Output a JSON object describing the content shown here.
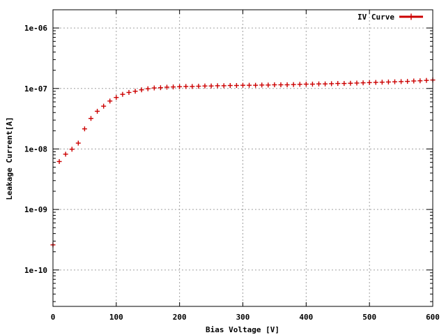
{
  "chart_data": {
    "type": "scatter",
    "xlabel": "Bias Voltage [V]",
    "ylabel": "Leakage Current[A]",
    "xlim": [
      0,
      600
    ],
    "ylim": [
      2.5e-11,
      2e-06
    ],
    "y_scale": "log",
    "grid": true,
    "legend_position": "top-right",
    "x_ticks": [
      {
        "value": 0,
        "label": "0"
      },
      {
        "value": 100,
        "label": "100"
      },
      {
        "value": 200,
        "label": "200"
      },
      {
        "value": 300,
        "label": "300"
      },
      {
        "value": 400,
        "label": "400"
      },
      {
        "value": 500,
        "label": "500"
      },
      {
        "value": 600,
        "label": "600"
      }
    ],
    "y_ticks": [
      {
        "value": 1e-10,
        "label": "1e-10"
      },
      {
        "value": 1e-09,
        "label": "1e-09"
      },
      {
        "value": 1e-08,
        "label": "1e-08"
      },
      {
        "value": 1e-07,
        "label": "1e-07"
      },
      {
        "value": 1e-06,
        "label": "1e-06"
      }
    ],
    "series": [
      {
        "name": "IV Curve",
        "color": "#cc0000",
        "marker": "plus",
        "x": [
          0,
          10,
          20,
          30,
          40,
          50,
          60,
          70,
          80,
          90,
          100,
          110,
          120,
          130,
          140,
          150,
          160,
          170,
          180,
          190,
          200,
          210,
          220,
          230,
          240,
          250,
          260,
          270,
          280,
          290,
          300,
          310,
          320,
          330,
          340,
          350,
          360,
          370,
          380,
          390,
          400,
          410,
          420,
          430,
          440,
          450,
          460,
          470,
          480,
          490,
          500,
          510,
          520,
          530,
          540,
          550,
          560,
          570,
          580,
          590,
          600
        ],
        "y": [
          2.6e-10,
          6.2e-09,
          8.2e-09,
          9.9e-09,
          1.25e-08,
          2.15e-08,
          3.2e-08,
          4.2e-08,
          5.1e-08,
          6.2e-08,
          7.1e-08,
          8e-08,
          8.6e-08,
          9e-08,
          9.5e-08,
          9.9e-08,
          1.02e-07,
          1.03e-07,
          1.05e-07,
          1.06e-07,
          1.07e-07,
          1.08e-07,
          1.08e-07,
          1.09e-07,
          1.1e-07,
          1.1e-07,
          1.11e-07,
          1.11e-07,
          1.12e-07,
          1.12e-07,
          1.13e-07,
          1.13e-07,
          1.13e-07,
          1.14e-07,
          1.14e-07,
          1.15e-07,
          1.15e-07,
          1.15e-07,
          1.16e-07,
          1.17e-07,
          1.18e-07,
          1.18e-07,
          1.19e-07,
          1.19e-07,
          1.2e-07,
          1.21e-07,
          1.21e-07,
          1.22e-07,
          1.23e-07,
          1.24e-07,
          1.25e-07,
          1.26e-07,
          1.27e-07,
          1.28e-07,
          1.29e-07,
          1.3e-07,
          1.31e-07,
          1.33e-07,
          1.34e-07,
          1.36e-07,
          1.38e-07
        ]
      }
    ]
  }
}
